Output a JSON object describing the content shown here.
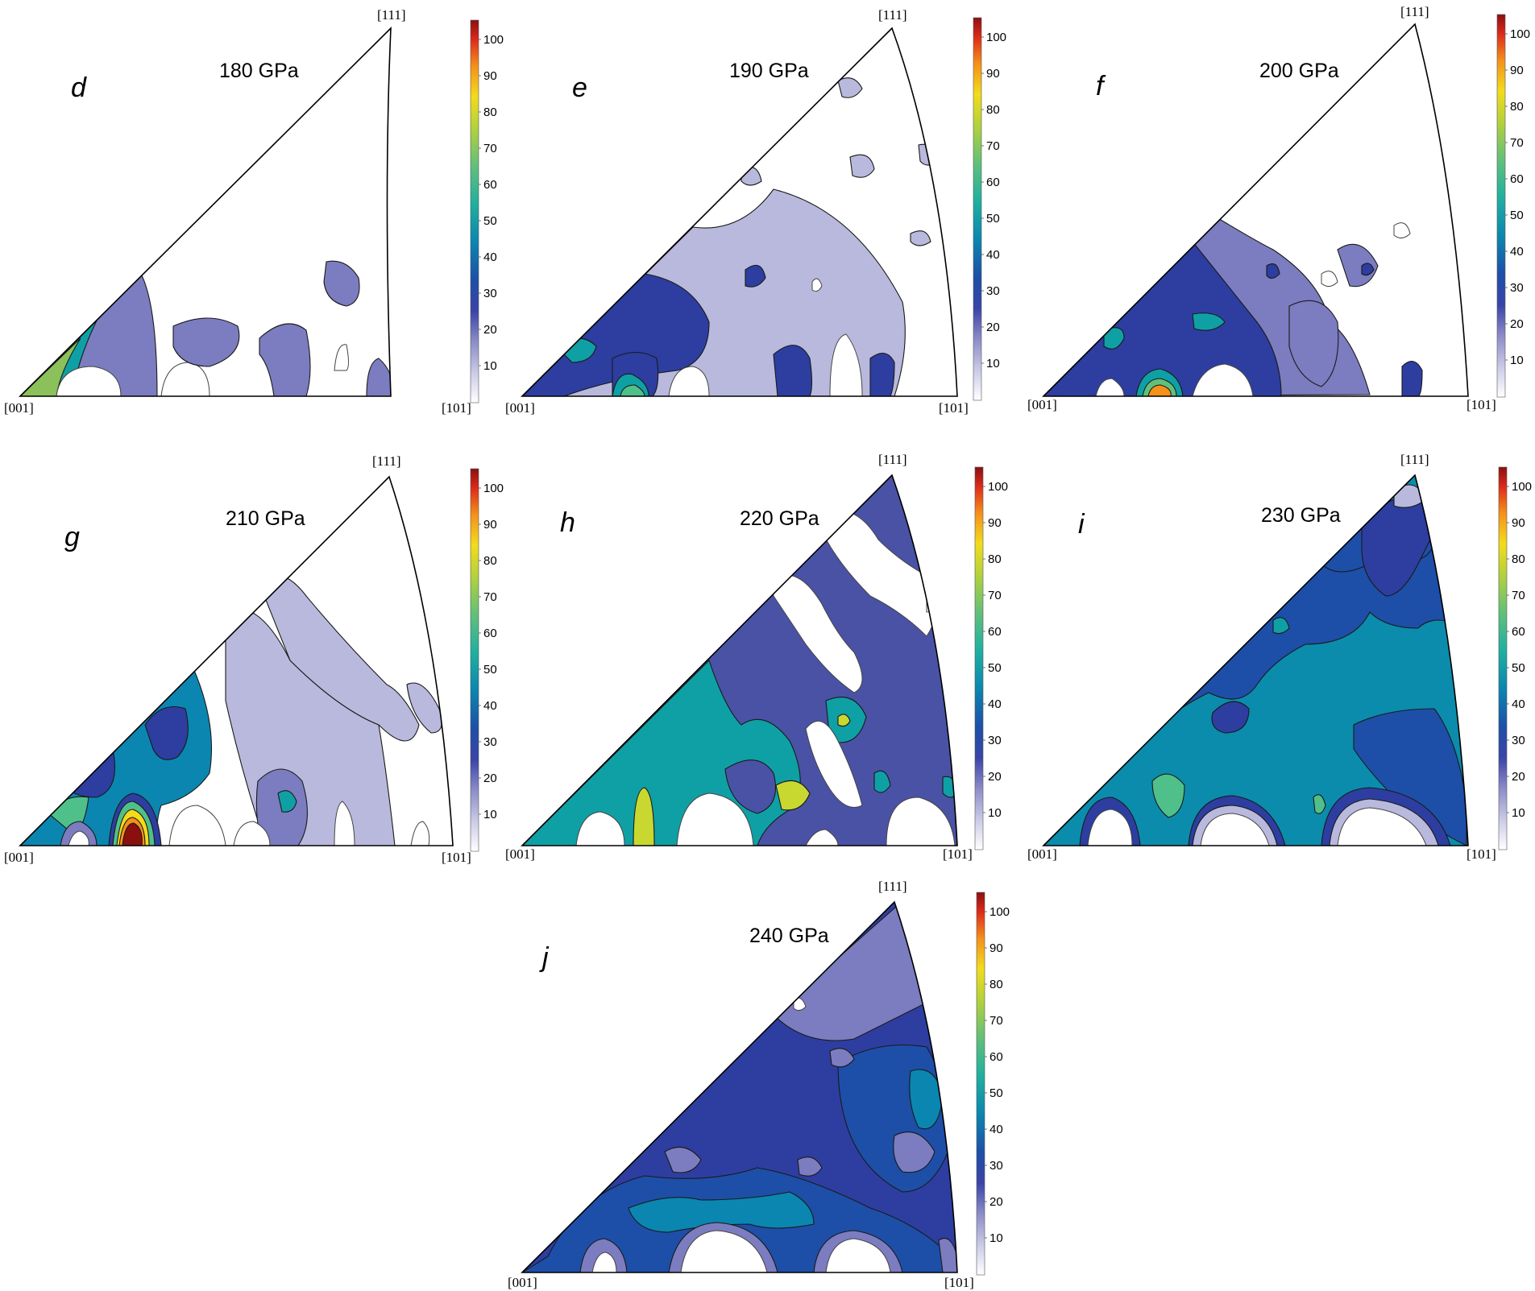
{
  "figure": {
    "panels": [
      {
        "id": "d",
        "letter": "d",
        "title": "180 GPa"
      },
      {
        "id": "e",
        "letter": "e",
        "title": "190 GPa"
      },
      {
        "id": "f",
        "letter": "f",
        "title": "200 GPa"
      },
      {
        "id": "g",
        "letter": "g",
        "title": "210 GPa"
      },
      {
        "id": "h",
        "letter": "h",
        "title": "220 GPa"
      },
      {
        "id": "i",
        "letter": "i",
        "title": "230 GPa"
      },
      {
        "id": "j",
        "letter": "j",
        "title": "240 GPa"
      }
    ],
    "corners": {
      "top": "[111]",
      "left": "[001]",
      "right": "[101]"
    },
    "colorbar": {
      "ticks": [
        "100",
        "90",
        "80",
        "70",
        "60",
        "50",
        "40",
        "30",
        "20",
        "10"
      ],
      "stops": [
        "#ffffff",
        "#b9b9dd",
        "#7c7cc0",
        "#2d3ea0",
        "#0c6fb0",
        "#0fa0a5",
        "#4fc08a",
        "#a8d04a",
        "#f0e020",
        "#f58a18",
        "#e0241c",
        "#8b1212"
      ]
    }
  }
}
